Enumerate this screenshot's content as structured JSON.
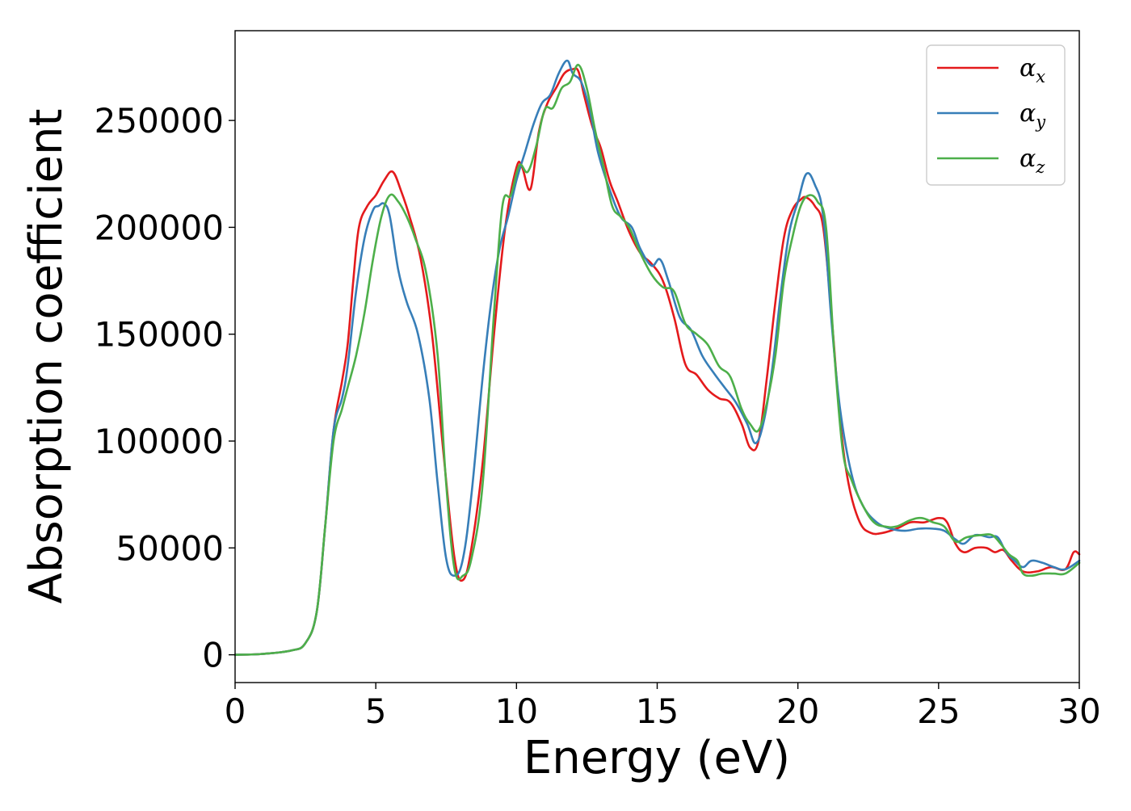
{
  "chart_data": {
    "type": "line",
    "title": "",
    "xlabel": "Energy (eV)",
    "ylabel": "Absorption coefficient",
    "xlim": [
      0,
      30
    ],
    "ylim": [
      -13000,
      292000
    ],
    "x_ticks": [
      0,
      5,
      10,
      15,
      20,
      25,
      30
    ],
    "x_tick_labels": [
      "0",
      "5",
      "10",
      "15",
      "20",
      "25",
      "30"
    ],
    "y_ticks": [
      0,
      50000,
      100000,
      150000,
      200000,
      250000
    ],
    "y_tick_labels": [
      "0",
      "50000",
      "100000",
      "150000",
      "200000",
      "250000"
    ],
    "grid": false,
    "legend_position": "top-right",
    "series": [
      {
        "name": "αx",
        "legend_base": "α",
        "legend_sub": "x",
        "color": "#e41a1c",
        "x": [
          0,
          1,
          2,
          2.5,
          2.9,
          3.2,
          3.5,
          3.8,
          4.0,
          4.2,
          4.4,
          4.7,
          5.0,
          5.3,
          5.6,
          5.9,
          6.2,
          6.6,
          7.0,
          7.4,
          7.8,
          8.1,
          8.4,
          8.8,
          9.2,
          9.6,
          10.0,
          10.2,
          10.5,
          10.8,
          11.1,
          11.4,
          11.7,
          12.0,
          12.2,
          12.4,
          12.7,
          13.0,
          13.3,
          13.6,
          14.0,
          14.4,
          14.8,
          15.2,
          15.6,
          16.0,
          16.4,
          16.8,
          17.2,
          17.6,
          18.0,
          18.3,
          18.6,
          18.9,
          19.2,
          19.5,
          19.8,
          20.1,
          20.3,
          20.6,
          20.9,
          21.2,
          21.5,
          21.8,
          22.2,
          22.6,
          23.0,
          23.5,
          24.0,
          24.5,
          25.0,
          25.3,
          25.6,
          25.9,
          26.3,
          26.7,
          27.0,
          27.3,
          27.6,
          28.0,
          28.5,
          29.0,
          29.5,
          29.8,
          30.0
        ],
        "values": [
          0,
          400,
          2000,
          5500,
          20000,
          60000,
          105000,
          128000,
          145000,
          175000,
          200000,
          210000,
          215000,
          222000,
          226000,
          217000,
          205000,
          185000,
          150000,
          95000,
          45000,
          35000,
          50000,
          90000,
          150000,
          200000,
          228000,
          228000,
          218000,
          245000,
          258000,
          265000,
          272000,
          274000,
          273000,
          262000,
          247000,
          237000,
          222000,
          212000,
          198000,
          188000,
          183000,
          175000,
          158000,
          136000,
          131000,
          124000,
          120000,
          118000,
          108000,
          97000,
          100000,
          130000,
          165000,
          195000,
          208000,
          213000,
          214000,
          210000,
          200000,
          158000,
          110000,
          80000,
          62000,
          57000,
          57000,
          59000,
          62000,
          62000,
          64000,
          62000,
          52000,
          48000,
          50000,
          50000,
          48000,
          49000,
          44000,
          39000,
          39000,
          41000,
          40000,
          48000,
          47000
        ]
      },
      {
        "name": "αy",
        "legend_base": "α",
        "legend_sub": "y",
        "color": "#377eb8",
        "x": [
          0,
          1,
          2,
          2.5,
          2.9,
          3.2,
          3.5,
          3.8,
          4.0,
          4.3,
          4.6,
          4.9,
          5.1,
          5.3,
          5.5,
          5.8,
          6.1,
          6.5,
          6.9,
          7.2,
          7.5,
          7.8,
          8.1,
          8.4,
          8.8,
          9.1,
          9.4,
          9.7,
          10.0,
          10.3,
          10.6,
          10.9,
          11.2,
          11.5,
          11.8,
          12.0,
          12.3,
          12.6,
          12.9,
          13.3,
          13.7,
          14.1,
          14.4,
          14.8,
          15.1,
          15.4,
          15.8,
          16.2,
          16.6,
          17.0,
          17.4,
          17.8,
          18.2,
          18.5,
          18.8,
          19.1,
          19.4,
          19.7,
          20.0,
          20.3,
          20.6,
          20.9,
          21.2,
          21.5,
          21.9,
          22.3,
          22.8,
          23.3,
          23.8,
          24.3,
          24.8,
          25.2,
          25.6,
          25.9,
          26.3,
          26.8,
          27.1,
          27.4,
          27.7,
          28.0,
          28.3,
          28.7,
          29.1,
          29.5,
          30.0
        ],
        "values": [
          0,
          400,
          2000,
          5500,
          20000,
          60000,
          105000,
          120000,
          135000,
          170000,
          195000,
          208000,
          210000,
          211000,
          205000,
          180000,
          165000,
          150000,
          120000,
          80000,
          45000,
          37000,
          45000,
          75000,
          130000,
          165000,
          190000,
          205000,
          222000,
          235000,
          248000,
          258000,
          262000,
          272000,
          278000,
          272000,
          268000,
          255000,
          235000,
          218000,
          205000,
          200000,
          190000,
          182000,
          185000,
          175000,
          158000,
          152000,
          140000,
          132000,
          125000,
          118000,
          108000,
          99000,
          110000,
          135000,
          170000,
          198000,
          212000,
          225000,
          220000,
          205000,
          155000,
          115000,
          85000,
          70000,
          62000,
          59000,
          58000,
          59000,
          59000,
          58000,
          54000,
          52000,
          56000,
          55000,
          55000,
          48000,
          44000,
          41000,
          44000,
          43000,
          41000,
          40000,
          44000
        ]
      },
      {
        "name": "αz",
        "legend_base": "α",
        "legend_sub": "z",
        "color": "#4daf4a",
        "x": [
          0,
          1,
          2,
          2.5,
          2.9,
          3.2,
          3.5,
          3.8,
          4.0,
          4.3,
          4.6,
          4.9,
          5.2,
          5.5,
          5.8,
          6.1,
          6.4,
          6.8,
          7.2,
          7.5,
          7.8,
          8.1,
          8.4,
          8.8,
          9.2,
          9.5,
          9.8,
          10.1,
          10.4,
          10.7,
          11.0,
          11.3,
          11.6,
          11.9,
          12.2,
          12.5,
          12.8,
          13.1,
          13.4,
          13.7,
          14.0,
          14.4,
          14.8,
          15.2,
          15.6,
          16.0,
          16.4,
          16.8,
          17.2,
          17.6,
          18.0,
          18.3,
          18.6,
          18.9,
          19.2,
          19.5,
          19.8,
          20.1,
          20.4,
          20.7,
          21.0,
          21.3,
          21.6,
          21.9,
          22.3,
          22.7,
          23.1,
          23.5,
          24.0,
          24.4,
          24.8,
          25.2,
          25.6,
          26.0,
          26.5,
          26.9,
          27.2,
          27.5,
          27.8,
          28.0,
          28.3,
          28.7,
          29.1,
          29.5,
          30.0
        ],
        "values": [
          0,
          400,
          2000,
          5500,
          20000,
          60000,
          100000,
          115000,
          125000,
          140000,
          160000,
          185000,
          205000,
          215000,
          212000,
          205000,
          195000,
          178000,
          140000,
          80000,
          40000,
          37000,
          45000,
          80000,
          160000,
          210000,
          215000,
          229000,
          226000,
          238000,
          255000,
          256000,
          265000,
          268000,
          276000,
          265000,
          245000,
          228000,
          210000,
          205000,
          200000,
          188000,
          178000,
          172000,
          170000,
          155000,
          150000,
          145000,
          135000,
          130000,
          115000,
          108000,
          105000,
          118000,
          140000,
          175000,
          195000,
          210000,
          215000,
          212000,
          200000,
          140000,
          95000,
          82000,
          70000,
          62000,
          60000,
          60000,
          63000,
          64000,
          62000,
          60000,
          53000,
          55000,
          56000,
          56000,
          52000,
          47000,
          44000,
          38000,
          37000,
          38000,
          38000,
          38000,
          43000
        ]
      }
    ]
  }
}
